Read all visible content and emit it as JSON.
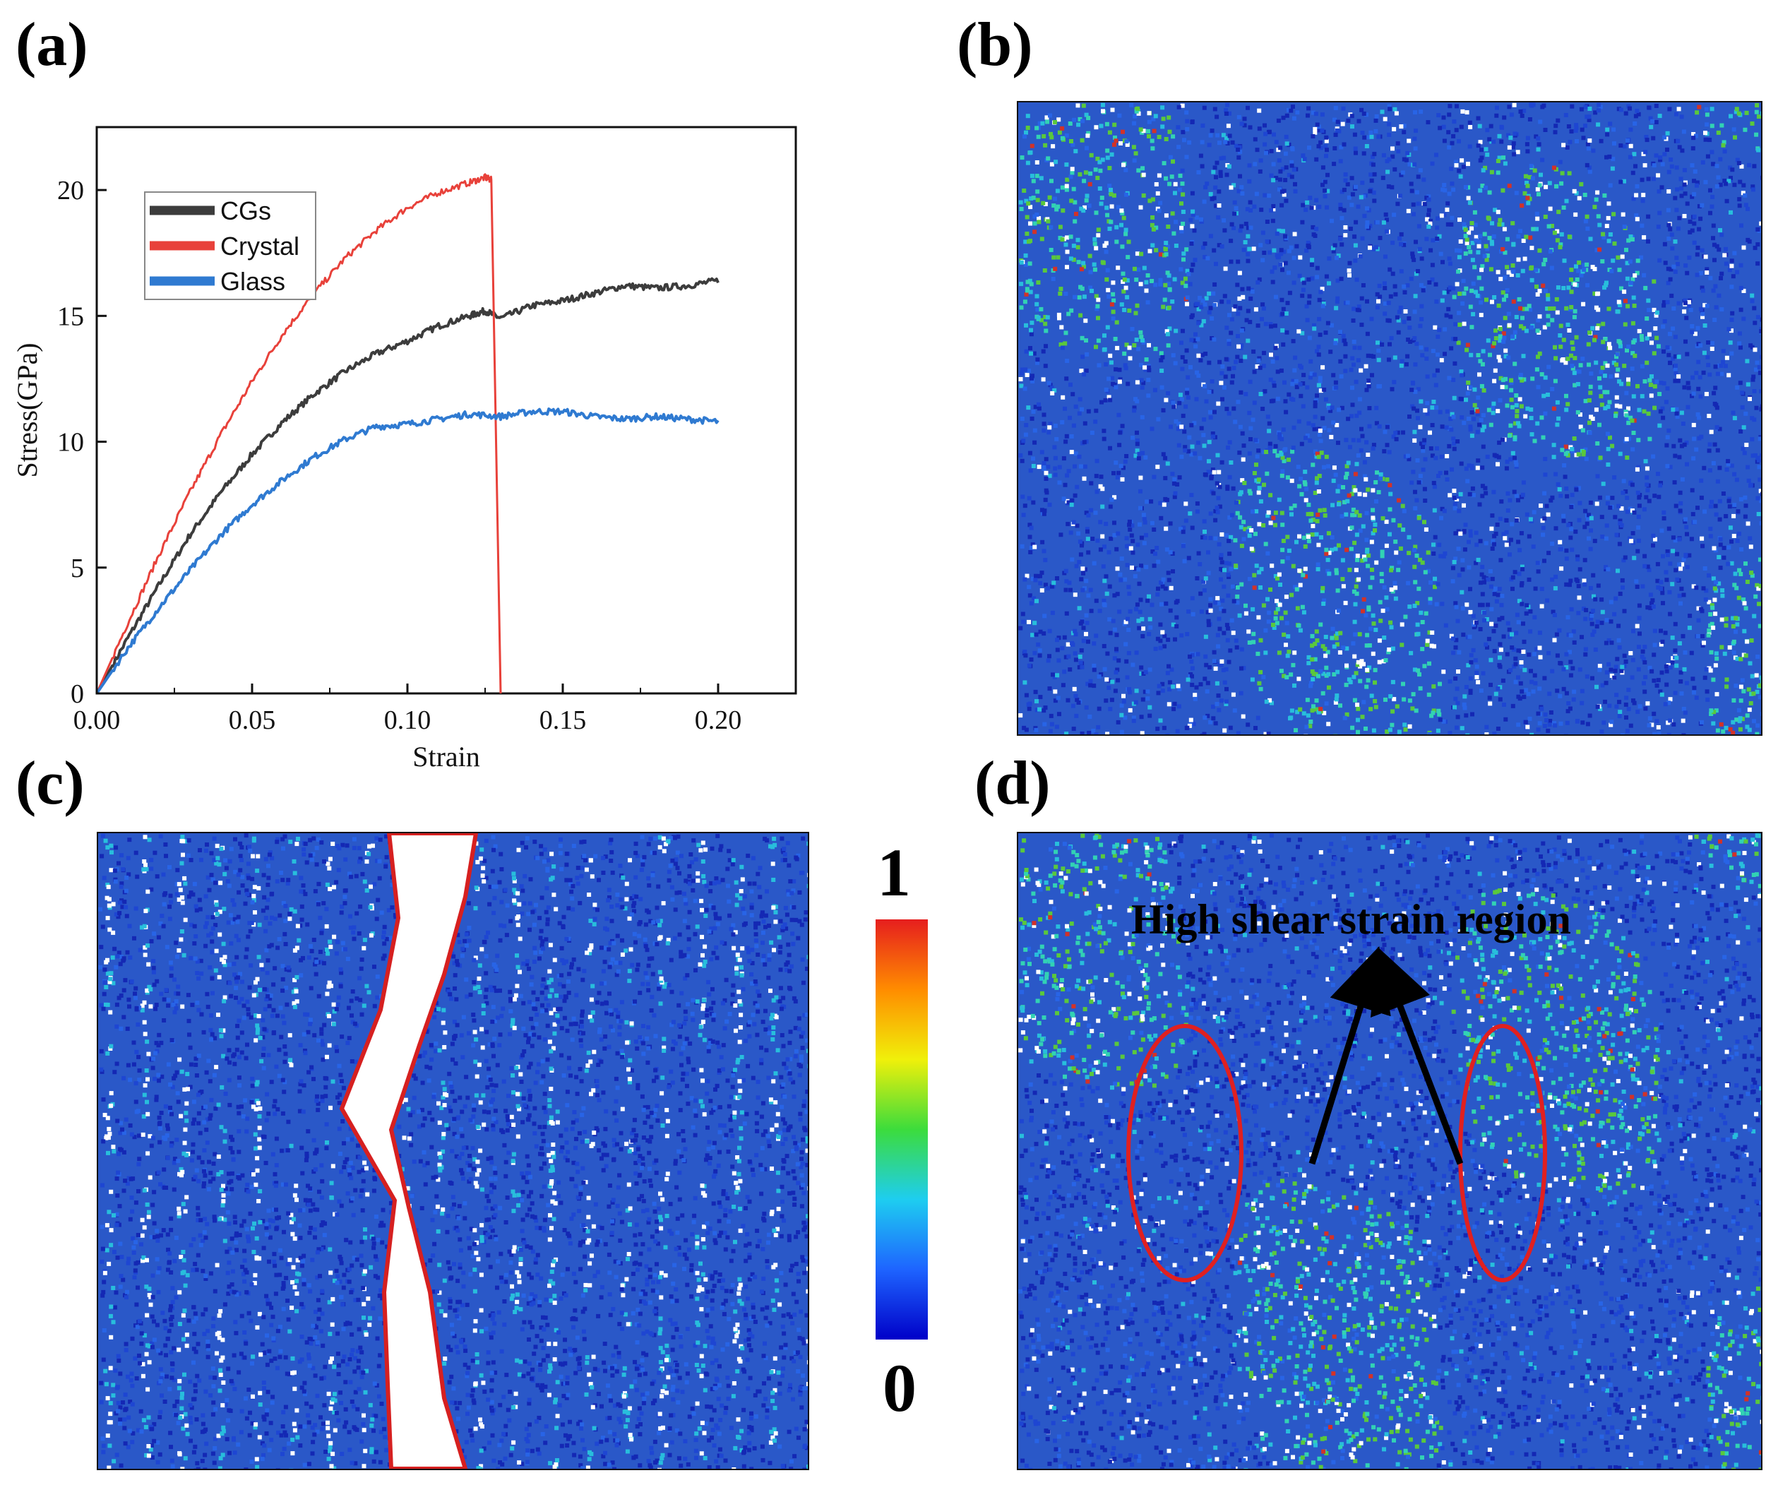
{
  "panels": {
    "a": "(a)",
    "b": "(b)",
    "c": "(c)",
    "d": "(d)"
  },
  "chart_data": {
    "type": "line",
    "title": "",
    "xlabel": "Strain",
    "ylabel": "Stress(GPa)",
    "xlim": [
      0,
      0.225
    ],
    "ylim": [
      0,
      22.5
    ],
    "xticks": [
      "0.00",
      "0.05",
      "0.10",
      "0.15",
      "0.20"
    ],
    "xtick_values": [
      0,
      0.05,
      0.1,
      0.15,
      0.2
    ],
    "yticks": [
      "0",
      "5",
      "10",
      "15",
      "20"
    ],
    "ytick_values": [
      0,
      5,
      10,
      15,
      20
    ],
    "legend_position": "top-left",
    "series": [
      {
        "name": "CGs",
        "color": "#3c3c3c",
        "x": [
          0,
          0.01,
          0.02,
          0.03,
          0.04,
          0.05,
          0.06,
          0.07,
          0.08,
          0.09,
          0.1,
          0.11,
          0.12,
          0.125,
          0.13,
          0.14,
          0.15,
          0.16,
          0.17,
          0.18,
          0.19,
          0.2
        ],
        "y": [
          0,
          2.2,
          4.3,
          6.3,
          8.0,
          9.5,
          10.8,
          11.9,
          12.8,
          13.5,
          14.0,
          14.6,
          15.0,
          15.2,
          14.9,
          15.4,
          15.6,
          15.9,
          16.2,
          16.1,
          16.2,
          16.4
        ]
      },
      {
        "name": "Crystal",
        "color": "#e8413a",
        "x": [
          0,
          0.01,
          0.02,
          0.03,
          0.04,
          0.05,
          0.06,
          0.07,
          0.08,
          0.09,
          0.1,
          0.11,
          0.12,
          0.125,
          0.127,
          0.13
        ],
        "y": [
          0,
          2.8,
          5.5,
          8.0,
          10.3,
          12.4,
          14.3,
          15.9,
          17.3,
          18.4,
          19.3,
          19.9,
          20.3,
          20.5,
          20.4,
          0
        ]
      },
      {
        "name": "Glass",
        "color": "#2f7ad1",
        "x": [
          0,
          0.01,
          0.02,
          0.03,
          0.04,
          0.05,
          0.06,
          0.07,
          0.08,
          0.09,
          0.1,
          0.11,
          0.12,
          0.13,
          0.14,
          0.15,
          0.16,
          0.17,
          0.18,
          0.19,
          0.2
        ],
        "y": [
          0,
          1.8,
          3.4,
          4.9,
          6.3,
          7.5,
          8.5,
          9.4,
          10.1,
          10.6,
          10.7,
          10.9,
          11.1,
          11.0,
          11.2,
          11.2,
          11.0,
          10.9,
          11.0,
          10.9,
          10.8
        ]
      }
    ]
  },
  "colorbar": {
    "max_label": "1",
    "min_label": "0",
    "colors": [
      "#0000c8",
      "#1e64ff",
      "#1ecdf0",
      "#3cdc3c",
      "#f0f00a",
      "#ff8c00",
      "#e61e1e"
    ]
  },
  "annotation": {
    "text": "High shear strain  region",
    "ellipse_color": "#e02020",
    "arrow_color": "#000000"
  },
  "map_colors": [
    "#1428b4",
    "#1e46d2",
    "#2864e6",
    "#1e8cf0",
    "#28bedc",
    "#32d2b4",
    "#5ac83c",
    "#3ca050",
    "#ffffff",
    "#d23228"
  ]
}
